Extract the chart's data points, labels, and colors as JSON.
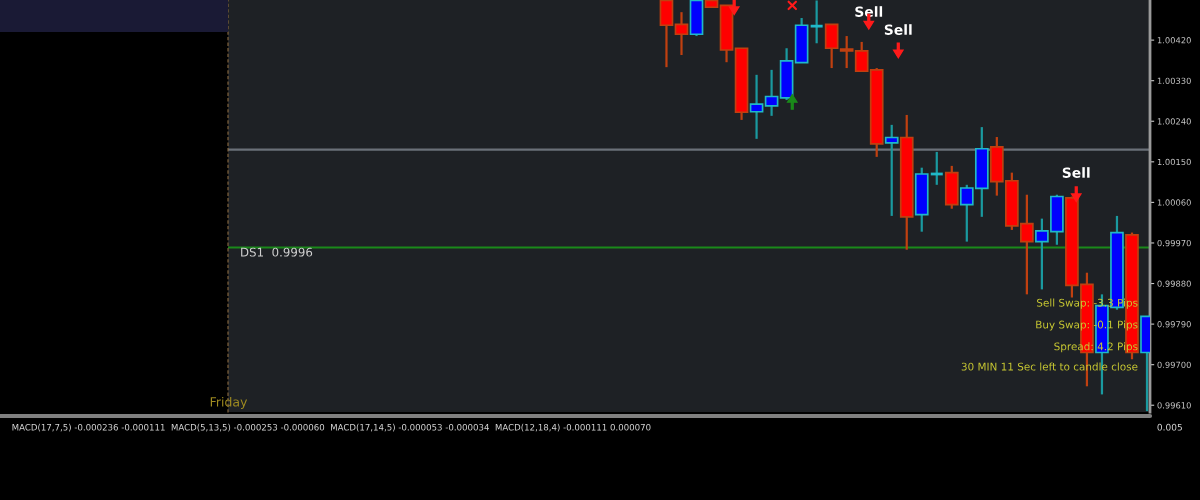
{
  "chart_data": [
    {
      "type": "candlestick",
      "categories": [
        null,
        null,
        null,
        null,
        null,
        null,
        null,
        null,
        null,
        null,
        null,
        null,
        null,
        null,
        null,
        null,
        null,
        null,
        null,
        null,
        null,
        null,
        null,
        null,
        null,
        null,
        null,
        null,
        null,
        null,
        null,
        null,
        null
      ],
      "ohlc": [
        [
          1.00508,
          1.00508,
          1.0036,
          1.00453
        ],
        [
          1.00455,
          1.00482,
          1.00387,
          1.00433
        ],
        [
          1.00433,
          1.00508,
          1.00429,
          1.00508
        ],
        [
          1.00508,
          1.00508,
          1.00493,
          1.00493
        ],
        [
          1.00497,
          1.00497,
          1.00371,
          1.00398
        ],
        [
          1.00402,
          1.00402,
          1.00243,
          1.0026
        ],
        [
          1.00261,
          1.00343,
          1.00201,
          1.00278
        ],
        [
          1.00274,
          1.00354,
          1.00252,
          1.00295
        ],
        [
          1.00292,
          1.00402,
          1.00287,
          1.00374
        ],
        [
          1.0037,
          1.00469,
          1.0037,
          1.00453
        ],
        [
          1.00451,
          1.00508,
          1.00413,
          1.00451
        ],
        [
          1.00455,
          1.00455,
          1.00358,
          1.00402
        ],
        [
          1.004,
          1.00429,
          1.00358,
          1.00396
        ],
        [
          1.00396,
          1.00416,
          1.00351,
          1.00351
        ],
        [
          1.00354,
          1.00358,
          1.00161,
          1.0019
        ],
        [
          1.00192,
          1.00232,
          1.0003,
          1.00204
        ],
        [
          1.00204,
          1.00254,
          0.99955,
          1.00028
        ],
        [
          1.00033,
          1.00137,
          0.99995,
          1.00123
        ],
        [
          1.00123,
          1.00172,
          1.00099,
          1.00123
        ],
        [
          1.00126,
          1.00141,
          1.00046,
          1.00055
        ],
        [
          1.00055,
          1.00099,
          0.99973,
          1.00092
        ],
        [
          1.00091,
          1.00227,
          1.00028,
          1.00179
        ],
        [
          1.00183,
          1.00205,
          1.00075,
          1.00106
        ],
        [
          1.00108,
          1.00126,
          0.99999,
          1.00008
        ],
        [
          1.00013,
          1.00077,
          0.99856,
          0.99973
        ],
        [
          0.99973,
          1.00024,
          0.99867,
          0.99997
        ],
        [
          0.99995,
          1.00077,
          0.99966,
          1.00073
        ],
        [
          1.0007,
          1.00073,
          0.99849,
          0.99876
        ],
        [
          0.99878,
          0.99904,
          0.99652,
          0.99727
        ],
        [
          0.99727,
          0.99856,
          0.99634,
          0.99831
        ],
        [
          0.99827,
          1.0003,
          0.99822,
          0.99993
        ],
        [
          0.99988,
          0.99993,
          0.99712,
          0.99727
        ],
        [
          0.99727,
          0.99807,
          0.99597,
          0.99807
        ]
      ],
      "ylim": [
        0.99595,
        1.00509
      ],
      "yticks": [
        {
          "value": 0.9961,
          "label": "0.99610"
        },
        {
          "value": 0.997,
          "label": "0.99700"
        },
        {
          "value": 0.9979,
          "label": "0.99790"
        },
        {
          "value": 0.9988,
          "label": "0.99880"
        },
        {
          "value": 0.9997,
          "label": "0.99970"
        },
        {
          "value": 1.0006,
          "label": "1.00060"
        },
        {
          "value": 1.0015,
          "label": "1.00150"
        },
        {
          "value": 1.0024,
          "label": "1.00240"
        },
        {
          "value": 1.0033,
          "label": "1.00330"
        },
        {
          "value": 1.0042,
          "label": "1.00420"
        }
      ],
      "ref_lines": [
        {
          "axis": "y",
          "value": 0.9996,
          "label": "DS1  0.9996",
          "color": "#1a8a1a"
        },
        {
          "axis": "y",
          "value": 1.00177,
          "color": "#6a7078"
        }
      ],
      "annotations": [
        "Sell",
        "Sell",
        "Sell",
        "Sell Swap: -3.3 Pips",
        "Buy Swap: -0.1 Pips",
        "Spread: 4.2 Pips",
        "30 MIN 11 Sec left to candle close",
        "Friday"
      ]
    },
    {
      "type": "other",
      "annotations": [
        "MACD(17,7,5) -0.000236 -0.000111  MACD(5,13,5) -0.000253 -0.000060  MACD(17,14,5) -0.000053 -0.000034  MACD(12,18,4) -0.000111 0.000070",
        "0.005"
      ]
    }
  ]
}
